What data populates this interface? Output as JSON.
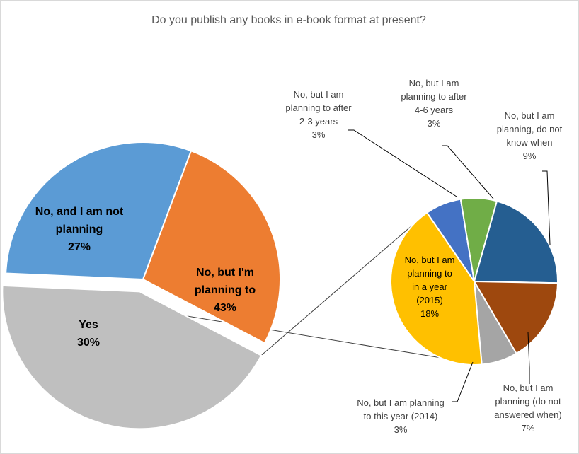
{
  "chart_data": {
    "type": "bar-of-pie",
    "title": "Do you publish any books in e-book format at present?",
    "main_pie": {
      "slices": [
        {
          "label_lines": [
            "No, and I am not",
            "planning",
            "27%"
          ],
          "value": 27,
          "color": "#ED7D31"
        },
        {
          "label_lines": [
            "No, but I'm",
            "planning to",
            "43%"
          ],
          "value": 43,
          "color": "#BFBFBF"
        },
        {
          "label_lines": [
            "Yes",
            "30%"
          ],
          "value": 30,
          "color": "#5B9BD5"
        }
      ]
    },
    "secondary_pie": {
      "slices": [
        {
          "label_lines": [
            "No, but I am",
            "planning to after",
            "2-3 years",
            "3%"
          ],
          "value": 3,
          "color": "#4472C4"
        },
        {
          "label_lines": [
            "No, but I am",
            "planning to after",
            "4-6 years",
            "3%"
          ],
          "value": 3,
          "color": "#70AD47"
        },
        {
          "label_lines": [
            "No, but I am",
            "planning, do not",
            "know when",
            "9%"
          ],
          "value": 9,
          "color": "#255E91"
        },
        {
          "label_lines": [
            "No, but I am",
            "planning (do not",
            "answered when)",
            "7%"
          ],
          "value": 7,
          "color": "#9E480E"
        },
        {
          "label_lines": [
            "No, but I am planning",
            "to this year (2014)",
            "3%"
          ],
          "value": 3,
          "color": "#A5A5A5"
        },
        {
          "label_lines": [
            "No, but I am",
            "planning to",
            "in a year",
            "(2015)",
            "18%"
          ],
          "value": 18,
          "color": "#FFC000"
        }
      ]
    }
  }
}
